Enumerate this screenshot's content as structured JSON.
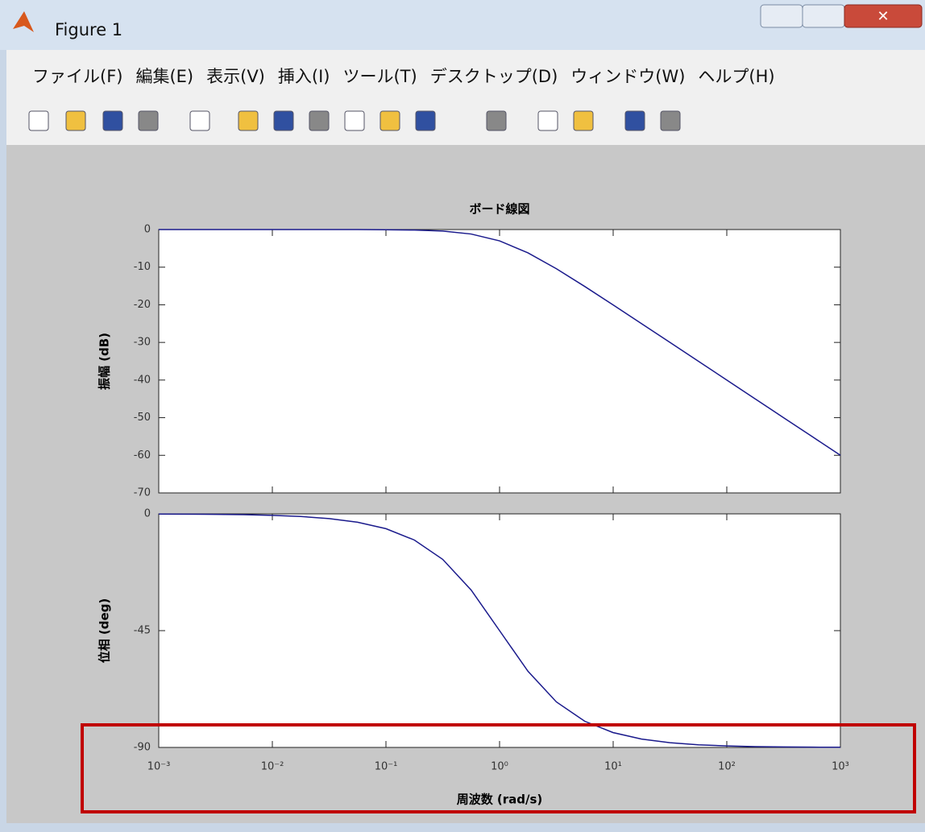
{
  "window": {
    "title": "Figure 1",
    "menu": [
      "ファイル(F)",
      "編集(E)",
      "表示(V)",
      "挿入(I)",
      "ツール(T)",
      "デスクトップ(D)",
      "ウィンドウ(W)",
      "ヘルプ(H)"
    ]
  },
  "chart_data": [
    {
      "type": "line",
      "title": "ボード線図",
      "ylabel": "振幅 (dB)",
      "xscale": "log",
      "color": "#1a1a8c",
      "x": [
        0.001,
        0.001778,
        0.003162,
        0.005623,
        0.01,
        0.01778,
        0.03162,
        0.05623,
        0.1,
        0.1778,
        0.3162,
        0.5623,
        1,
        1.778,
        3.162,
        5.623,
        10,
        17.78,
        31.62,
        56.23,
        100,
        177.8,
        316.2,
        562.3,
        1000
      ],
      "values": [
        0,
        0,
        0,
        0,
        0,
        0,
        0,
        -0.01,
        -0.04,
        -0.14,
        -0.41,
        -1.19,
        -3.01,
        -6.19,
        -10.41,
        -15.13,
        -20.04,
        -25.01,
        -30,
        -35,
        -40,
        -45,
        -50,
        -55,
        -60
      ],
      "xlim": [
        0.001,
        1000
      ],
      "xticks": [
        0.001,
        0.01,
        0.1,
        1,
        10,
        100,
        1000
      ],
      "ylim": [
        -70,
        0
      ],
      "yticks": [
        0,
        -10,
        -20,
        -30,
        -40,
        -50,
        -60,
        -70
      ],
      "grid": false
    },
    {
      "type": "line",
      "ylabel": "位相 (deg)",
      "xlabel": "周波数 (rad/s)",
      "xscale": "log",
      "color": "#1a1a8c",
      "x": [
        0.001,
        0.001778,
        0.003162,
        0.005623,
        0.01,
        0.01778,
        0.03162,
        0.05623,
        0.1,
        0.1778,
        0.3162,
        0.5623,
        1,
        1.778,
        3.162,
        5.623,
        10,
        17.78,
        31.62,
        56.23,
        100,
        177.8,
        316.2,
        562.3,
        1000
      ],
      "values": [
        -0.06,
        -0.1,
        -0.18,
        -0.32,
        -0.57,
        -1.02,
        -1.81,
        -3.22,
        -5.71,
        -10.08,
        -17.55,
        -29.36,
        -45,
        -60.64,
        -72.45,
        -79.92,
        -84.29,
        -86.78,
        -88.19,
        -88.98,
        -89.43,
        -89.68,
        -89.82,
        -89.9,
        -89.94
      ],
      "xlim": [
        0.001,
        1000
      ],
      "xticks": [
        {
          "value": 0.001,
          "label": "10⁻³"
        },
        {
          "value": 0.01,
          "label": "10⁻²"
        },
        {
          "value": 0.1,
          "label": "10⁻¹"
        },
        {
          "value": 1,
          "label": "10⁰"
        },
        {
          "value": 10,
          "label": "10¹"
        },
        {
          "value": 100,
          "label": "10²"
        },
        {
          "value": 1000,
          "label": "10³"
        }
      ],
      "ylim": [
        -90,
        0
      ],
      "yticks": [
        0,
        -45,
        -90
      ],
      "grid": false
    }
  ]
}
